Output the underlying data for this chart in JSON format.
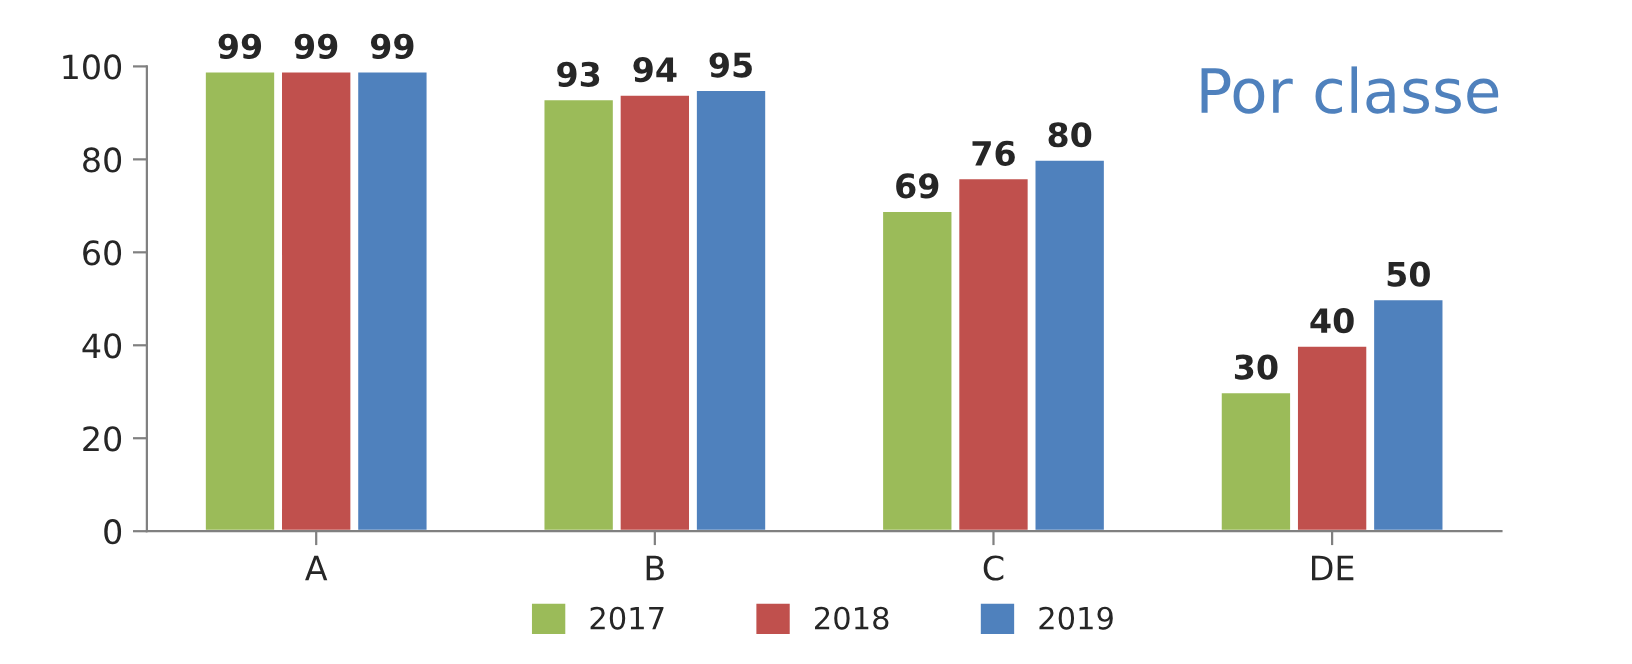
{
  "chart_data": {
    "type": "bar",
    "title": "Por classe",
    "categories": [
      "A",
      "B",
      "C",
      "DE"
    ],
    "series": [
      {
        "name": "2017",
        "color": "#9bbb59",
        "values": [
          99,
          93,
          69,
          30
        ]
      },
      {
        "name": "2018",
        "color": "#c0504d",
        "values": [
          99,
          94,
          76,
          40
        ]
      },
      {
        "name": "2019",
        "color": "#4f81bd",
        "values": [
          99,
          95,
          80,
          50
        ]
      }
    ],
    "ylim": [
      0,
      100
    ],
    "yticks": [
      0,
      20,
      40,
      60,
      80,
      100
    ],
    "data_labels": true,
    "legend": "bottom",
    "grid": false
  }
}
